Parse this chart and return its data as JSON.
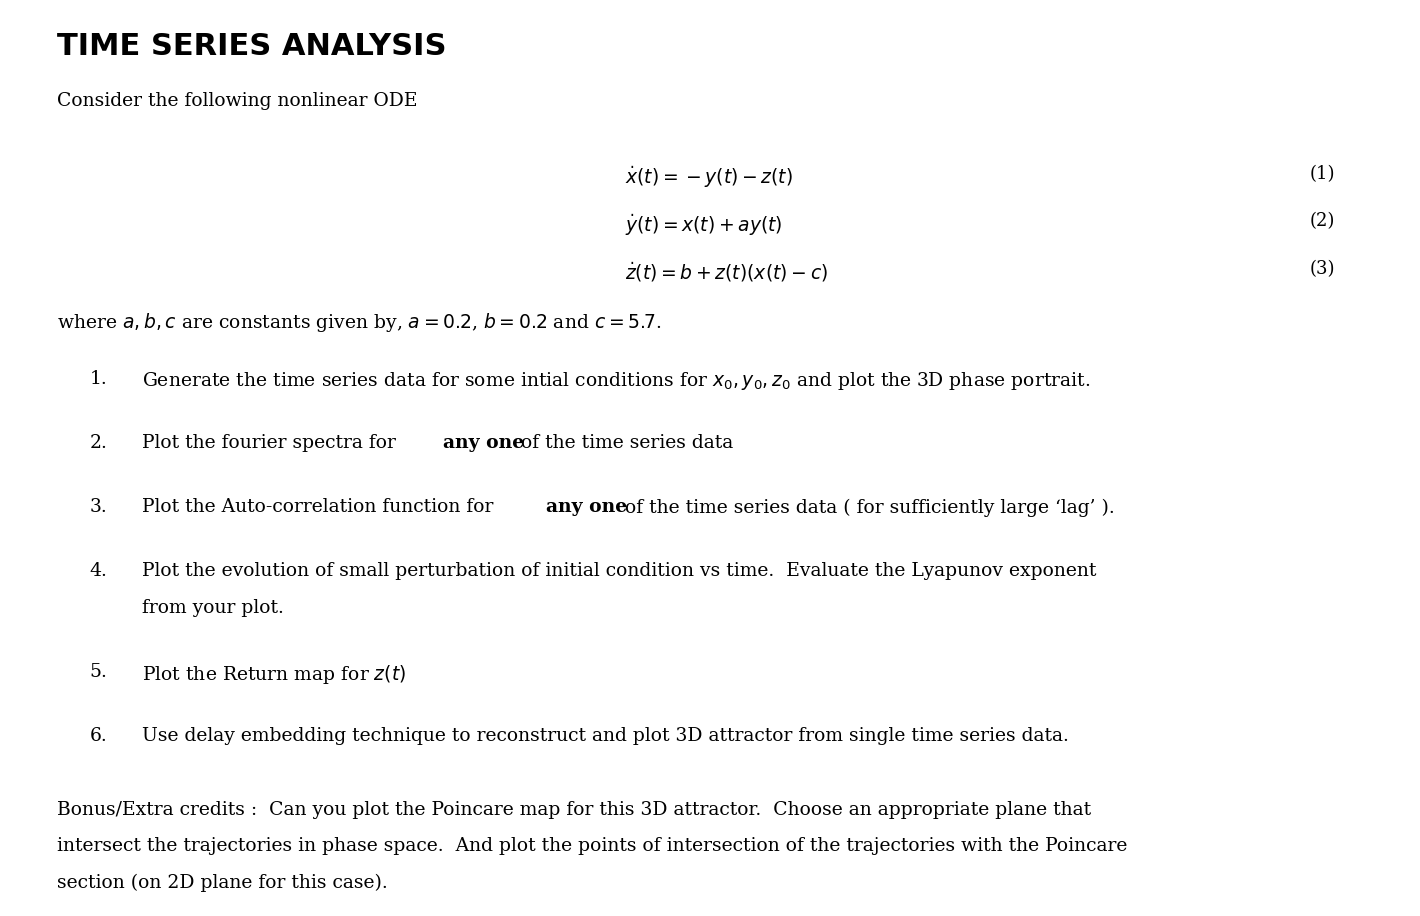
{
  "title": "TIME SERIES ANALYSIS",
  "background_color": "#ffffff",
  "text_color": "#000000",
  "figsize": [
    14.2,
    9.16
  ],
  "dpi": 100,
  "intro": "Consider the following nonlinear ODE",
  "eq1": "$\\dot{x}(t) = -y(t) - z(t)$",
  "eq2": "$\\dot{y}(t) = x(t) + ay(t)$",
  "eq3": "$\\dot{z}(t) = b + z(t)(x(t) - c)$",
  "eq1_num": "(1)",
  "eq2_num": "(2)",
  "eq3_num": "(3)",
  "constants": "where $a, b, c$ are constants given by, $a = 0.2$, $b = 0.2$ and $c = 5.7$.",
  "item1": "Generate the time series data for some intial conditions for $x_0, y_0, z_0$ and plot the 3D phase portrait.",
  "item2_pre": "Plot the fourier spectra for ",
  "item2_bold": "any one",
  "item2_post": " of the time series data",
  "item3_pre": "Plot the Auto-correlation function for ",
  "item3_bold": "any one",
  "item3_post": " of the time series data ( for sufficiently large ‘lag’ ).",
  "item4_line1": "Plot the evolution of small perturbation of initial condition vs time.  Evaluate the Lyapunov exponent",
  "item4_line2": "from your plot.",
  "item5": "Plot the Return map for $z(t)$",
  "item6": "Use delay embedding technique to reconstruct and plot 3D attractor from single time series data.",
  "bonus_line1": "Bonus/Extra credits :  Can you plot the Poincare map for this 3D attractor.  Choose an appropriate plane that",
  "bonus_line2": "intersect the trajectories in phase space.  And plot the points of intersection of the trajectories with the Poincare",
  "bonus_line3": "section (on 2D plane for this case)."
}
